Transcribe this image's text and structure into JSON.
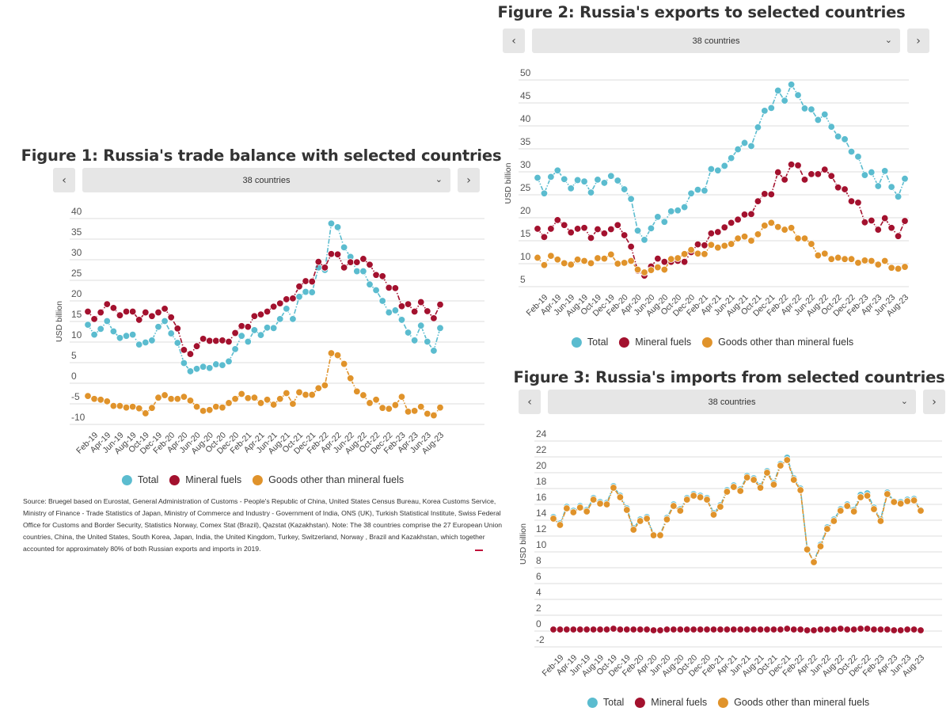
{
  "colors": {
    "total": "#5bbccf",
    "mineral_fuels": "#a3112e",
    "goods_other": "#e0932b",
    "grid": "#e3e3e3",
    "control_bg": "#e6e6e6"
  },
  "legend": {
    "total": "Total",
    "mineral_fuels": "Mineral fuels",
    "goods_other": "Goods other than mineral fuels"
  },
  "controls": {
    "prev_icon": "chevron-left-icon",
    "next_icon": "chevron-right-icon",
    "prev_glyph": "‹",
    "next_glyph": "›",
    "dropdown_glyph": "⌄",
    "selected": "38 countries"
  },
  "source": "Source: Bruegel based on Eurostat, General Administration of Customs - People's Republic of China, United States Census Bureau, Korea Customs Service, Ministry of Finance - Trade Statistics of Japan, Ministry of Commerce and Industry - Government of India, ONS (UK), Turkish Statistical Institute, Swiss Federal Office for Customs and Border Security, Statistics Norway, Comex Stat (Brazil), Qazstat (Kazakhstan). Note: The 38 countries comprise the 27 European Union countries, China, the United States, South Korea, Japan, India, the United Kingdom, Turkey, Switzerland, Norway , Brazil and Kazakhstan, which together accounted for approximately 80% of both Russian exports and imports in 2019.",
  "chart_data": [
    {
      "type": "line",
      "title": "Figure 1: Russia's trade balance with selected countries",
      "ylabel": "USD billion",
      "ylim": [
        -10,
        40
      ],
      "yticks": [
        "40",
        "35",
        "30",
        "25",
        "20",
        "15",
        "10",
        "5",
        "0",
        "-5",
        "-10"
      ],
      "grid": true,
      "legend_position": "bottom",
      "x_tick_labels": [
        "Feb-19",
        "Apr-19",
        "Jun-19",
        "Aug-19",
        "Oct-19",
        "Dec-19",
        "Feb-20",
        "Apr-20",
        "Jun-20",
        "Aug-20",
        "Oct-20",
        "Dec-20",
        "Feb-21",
        "Apr-21",
        "Jun-21",
        "Aug-21",
        "Oct-21",
        "Dec-21",
        "Feb-22",
        "Apr-22",
        "Jun-22",
        "Aug-22",
        "Oct-22",
        "Dec-22",
        "Feb-23",
        "Apr-23",
        "Jun-23",
        "Aug-23"
      ],
      "x": [
        "Jan-19",
        "Feb-19",
        "Mar-19",
        "Apr-19",
        "May-19",
        "Jun-19",
        "Jul-19",
        "Aug-19",
        "Sep-19",
        "Oct-19",
        "Nov-19",
        "Dec-19",
        "Jan-20",
        "Feb-20",
        "Mar-20",
        "Apr-20",
        "May-20",
        "Jun-20",
        "Jul-20",
        "Aug-20",
        "Sep-20",
        "Oct-20",
        "Nov-20",
        "Dec-20",
        "Jan-21",
        "Feb-21",
        "Mar-21",
        "Apr-21",
        "May-21",
        "Jun-21",
        "Jul-21",
        "Aug-21",
        "Sep-21",
        "Oct-21",
        "Nov-21",
        "Dec-21",
        "Jan-22",
        "Feb-22",
        "Mar-22",
        "Apr-22",
        "May-22",
        "Jun-22",
        "Jul-22",
        "Aug-22",
        "Sep-22",
        "Oct-22",
        "Nov-22",
        "Dec-22",
        "Jan-23",
        "Feb-23",
        "Mar-23",
        "Apr-23",
        "May-23",
        "Jun-23",
        "Jul-23",
        "Aug-23"
      ],
      "series": [
        {
          "name": "Total",
          "key": "total",
          "values": [
            14.2,
            11.8,
            13.2,
            15.1,
            12.6,
            11.0,
            11.5,
            11.8,
            9.4,
            9.9,
            10.4,
            13.7,
            15.1,
            12.1,
            9.8,
            4.9,
            2.9,
            3.5,
            4.0,
            3.7,
            4.6,
            4.4,
            5.3,
            8.3,
            11.5,
            10.1,
            12.9,
            11.7,
            13.5,
            13.4,
            15.6,
            18.1,
            15.6,
            21.0,
            22.2,
            22.1,
            28.1,
            27.5,
            38.8,
            37.9,
            33.0,
            30.7,
            27.2,
            27.2,
            24.0,
            22.6,
            20.0,
            17.2,
            17.7,
            15.4,
            12.3,
            10.4,
            14.0,
            10.1,
            7.9,
            13.4
          ]
        },
        {
          "name": "Mineral fuels",
          "key": "mineral_fuels",
          "values": [
            17.4,
            15.6,
            17.2,
            19.2,
            18.3,
            16.5,
            17.4,
            17.4,
            15.4,
            17.2,
            16.3,
            17.2,
            18.1,
            16.0,
            13.3,
            8.1,
            7.1,
            9.0,
            10.8,
            10.3,
            10.3,
            10.4,
            10.1,
            12.2,
            13.9,
            13.7,
            16.3,
            16.7,
            17.4,
            18.6,
            19.4,
            20.4,
            20.6,
            23.5,
            24.8,
            24.7,
            29.5,
            28.1,
            31.4,
            31.3,
            28.1,
            29.4,
            29.4,
            30.2,
            28.8,
            26.3,
            26.0,
            23.2,
            23.1,
            18.7,
            19.2,
            17.4,
            19.7,
            17.5,
            15.8,
            19.1
          ]
        },
        {
          "name": "Goods other than mineral fuels",
          "key": "goods_other",
          "values": [
            -3.1,
            -3.8,
            -4.0,
            -4.4,
            -5.5,
            -5.5,
            -5.9,
            -5.7,
            -6.1,
            -7.3,
            -6.0,
            -3.5,
            -2.9,
            -3.8,
            -3.8,
            -3.3,
            -4.2,
            -5.7,
            -6.7,
            -6.5,
            -5.7,
            -5.9,
            -4.8,
            -3.8,
            -2.6,
            -3.6,
            -3.5,
            -4.8,
            -4.0,
            -5.2,
            -3.8,
            -2.4,
            -5.0,
            -2.2,
            -2.8,
            -2.8,
            -1.2,
            -0.5,
            7.3,
            6.8,
            4.7,
            1.2,
            -2.0,
            -2.9,
            -4.8,
            -4.0,
            -6.0,
            -6.2,
            -5.3,
            -3.3,
            -6.9,
            -6.7,
            -5.7,
            -7.4,
            -7.8,
            -5.9
          ]
        }
      ]
    },
    {
      "type": "line",
      "title": "Figure 2: Russia's exports to selected countries",
      "ylabel": "USD billion",
      "ylim": [
        5,
        50
      ],
      "yticks": [
        "50",
        "45",
        "40",
        "35",
        "30",
        "25",
        "20",
        "15",
        "10",
        "5"
      ],
      "grid": true,
      "legend_position": "bottom",
      "x_tick_labels": [
        "Feb-19",
        "Apr-19",
        "Jun-19",
        "Aug-19",
        "Oct-19",
        "Dec-19",
        "Feb-20",
        "Apr-20",
        "Jun-20",
        "Aug-20",
        "Oct-20",
        "Dec-20",
        "Feb-21",
        "Apr-21",
        "Jun-21",
        "Aug-21",
        "Oct-21",
        "Dec-21",
        "Feb-22",
        "Apr-22",
        "Jun-22",
        "Aug-22",
        "Oct-22",
        "Dec-22",
        "Feb-23",
        "Apr-23",
        "Jun-23",
        "Aug-23"
      ],
      "x": [
        "Jan-19",
        "Feb-19",
        "Mar-19",
        "Apr-19",
        "May-19",
        "Jun-19",
        "Jul-19",
        "Aug-19",
        "Sep-19",
        "Oct-19",
        "Nov-19",
        "Dec-19",
        "Jan-20",
        "Feb-20",
        "Mar-20",
        "Apr-20",
        "May-20",
        "Jun-20",
        "Jul-20",
        "Aug-20",
        "Sep-20",
        "Oct-20",
        "Nov-20",
        "Dec-20",
        "Jan-21",
        "Feb-21",
        "Mar-21",
        "Apr-21",
        "May-21",
        "Jun-21",
        "Jul-21",
        "Aug-21",
        "Sep-21",
        "Oct-21",
        "Nov-21",
        "Dec-21",
        "Jan-22",
        "Feb-22",
        "Mar-22",
        "Apr-22",
        "May-22",
        "Jun-22",
        "Jul-22",
        "Aug-22",
        "Sep-22",
        "Oct-22",
        "Nov-22",
        "Dec-22",
        "Jan-23",
        "Feb-23",
        "Mar-23",
        "Apr-23",
        "May-23",
        "Jun-23",
        "Jul-23",
        "Aug-23"
      ],
      "series": [
        {
          "name": "Total",
          "key": "total",
          "values": [
            28.7,
            25.3,
            28.9,
            30.3,
            28.4,
            26.4,
            28.2,
            27.9,
            25.5,
            28.3,
            27.6,
            29.1,
            28.1,
            26.2,
            24.1,
            17.2,
            15.2,
            17.7,
            20.2,
            19.1,
            21.4,
            21.6,
            22.3,
            25.3,
            26.1,
            25.9,
            30.6,
            30.3,
            31.3,
            33.0,
            34.9,
            36.3,
            35.6,
            39.7,
            43.3,
            43.9,
            47.7,
            45.5,
            49.0,
            46.7,
            43.8,
            43.6,
            41.3,
            42.5,
            39.8,
            37.7,
            37.1,
            34.4,
            33.3,
            29.3,
            29.9,
            26.9,
            30.2,
            26.7,
            24.6,
            28.5
          ]
        },
        {
          "name": "Mineral fuels",
          "key": "mineral_fuels",
          "values": [
            17.6,
            15.8,
            17.6,
            19.5,
            18.4,
            16.8,
            17.6,
            17.8,
            15.6,
            17.5,
            16.6,
            17.5,
            18.4,
            16.2,
            13.7,
            8.5,
            7.4,
            9.4,
            11.1,
            10.4,
            10.4,
            10.6,
            10.4,
            12.5,
            14.2,
            14.0,
            16.6,
            16.9,
            17.9,
            18.9,
            19.6,
            20.7,
            20.8,
            23.6,
            25.2,
            25.1,
            29.9,
            28.3,
            31.6,
            31.4,
            28.3,
            29.5,
            29.5,
            30.5,
            29.1,
            26.6,
            26.2,
            23.6,
            23.3,
            19.0,
            19.4,
            17.4,
            19.9,
            17.8,
            16.0,
            19.3
          ]
        },
        {
          "name": "Goods other than mineral fuels",
          "key": "goods_other",
          "values": [
            11.3,
            9.7,
            11.7,
            10.9,
            10.1,
            9.8,
            10.9,
            10.6,
            10.1,
            11.2,
            11.1,
            12.0,
            10.0,
            10.2,
            10.6,
            8.7,
            8.1,
            8.6,
            9.2,
            8.7,
            11.0,
            11.2,
            12.1,
            13.0,
            12.2,
            12.1,
            14.1,
            13.5,
            13.9,
            14.3,
            15.5,
            15.9,
            15.0,
            16.4,
            18.3,
            18.9,
            18.0,
            17.4,
            17.8,
            15.5,
            15.5,
            14.3,
            11.8,
            12.2,
            11.0,
            11.3,
            11.0,
            11.0,
            10.2,
            10.7,
            10.6,
            9.8,
            10.6,
            9.1,
            8.9,
            9.3
          ]
        }
      ]
    },
    {
      "type": "line",
      "title": "Figure 3: Russia's imports from selected countries",
      "ylabel": "USD billion",
      "ylim": [
        -2,
        24
      ],
      "yticks": [
        "24",
        "22",
        "20",
        "18",
        "16",
        "14",
        "12",
        "10",
        "8",
        "6",
        "4",
        "2",
        "0",
        "-2"
      ],
      "grid": true,
      "legend_position": "bottom",
      "x_tick_labels": [
        "Feb-19",
        "Apr-19",
        "Jun-19",
        "Aug-19",
        "Oct-19",
        "Dec-19",
        "Feb-20",
        "Apr-20",
        "Jun-20",
        "Aug-20",
        "Oct-20",
        "Dec-20",
        "Feb-21",
        "Apr-21",
        "Jun-21",
        "Aug-21",
        "Oct-21",
        "Dec-21",
        "Feb-22",
        "Apr-22",
        "Jun-22",
        "Aug-22",
        "Oct-22",
        "Dec-22",
        "Feb-23",
        "Apr-23",
        "Jun-23",
        "Aug-23"
      ],
      "x": [
        "Jan-19",
        "Feb-19",
        "Mar-19",
        "Apr-19",
        "May-19",
        "Jun-19",
        "Jul-19",
        "Aug-19",
        "Sep-19",
        "Oct-19",
        "Nov-19",
        "Dec-19",
        "Jan-20",
        "Feb-20",
        "Mar-20",
        "Apr-20",
        "May-20",
        "Jun-20",
        "Jul-20",
        "Aug-20",
        "Sep-20",
        "Oct-20",
        "Nov-20",
        "Dec-20",
        "Jan-21",
        "Feb-21",
        "Mar-21",
        "Apr-21",
        "May-21",
        "Jun-21",
        "Jul-21",
        "Aug-21",
        "Sep-21",
        "Oct-21",
        "Nov-21",
        "Dec-21",
        "Jan-22",
        "Feb-22",
        "Mar-22",
        "Apr-22",
        "May-22",
        "Jun-22",
        "Jul-22",
        "Aug-22",
        "Sep-22",
        "Oct-22",
        "Nov-22",
        "Dec-22",
        "Jan-23",
        "Feb-23",
        "Mar-23",
        "Apr-23",
        "May-23",
        "Jun-23",
        "Jul-23",
        "Aug-23"
      ],
      "series": [
        {
          "name": "Total",
          "key": "total",
          "values": [
            14.4,
            13.6,
            15.7,
            15.2,
            15.8,
            15.3,
            16.8,
            16.3,
            16.2,
            18.3,
            17.1,
            15.5,
            13.0,
            14.1,
            14.4,
            12.2,
            12.2,
            14.3,
            16.0,
            15.4,
            16.8,
            17.3,
            17.1,
            16.8,
            14.9,
            15.9,
            17.8,
            18.4,
            17.9,
            19.6,
            19.3,
            18.3,
            20.2,
            18.7,
            21.1,
            21.9,
            19.3,
            18.0,
            10.4,
            8.8,
            10.9,
            13.1,
            14.1,
            15.4,
            16.0,
            15.3,
            17.2,
            17.4,
            15.6,
            14.1,
            17.5,
            16.4,
            16.3,
            16.6,
            16.7,
            15.3
          ]
        },
        {
          "name": "Mineral fuels",
          "key": "mineral_fuels",
          "values": [
            0.2,
            0.2,
            0.2,
            0.2,
            0.2,
            0.2,
            0.2,
            0.2,
            0.2,
            0.3,
            0.2,
            0.2,
            0.2,
            0.2,
            0.2,
            0.1,
            0.1,
            0.2,
            0.2,
            0.2,
            0.2,
            0.2,
            0.2,
            0.2,
            0.2,
            0.2,
            0.2,
            0.2,
            0.2,
            0.2,
            0.2,
            0.2,
            0.2,
            0.2,
            0.2,
            0.3,
            0.2,
            0.2,
            0.1,
            0.1,
            0.2,
            0.2,
            0.2,
            0.3,
            0.2,
            0.2,
            0.3,
            0.3,
            0.2,
            0.2,
            0.2,
            0.1,
            0.1,
            0.2,
            0.2,
            0.1
          ]
        },
        {
          "name": "Goods other than mineral fuels",
          "key": "goods_other",
          "values": [
            14.2,
            13.4,
            15.5,
            15.0,
            15.6,
            15.1,
            16.6,
            16.1,
            16.0,
            18.1,
            16.9,
            15.3,
            12.8,
            13.9,
            14.2,
            12.1,
            12.1,
            14.1,
            15.8,
            15.2,
            16.6,
            17.1,
            16.9,
            16.6,
            14.7,
            15.7,
            17.6,
            18.2,
            17.7,
            19.4,
            19.1,
            18.1,
            20.0,
            18.5,
            20.9,
            21.6,
            19.1,
            17.8,
            10.3,
            8.7,
            10.7,
            12.9,
            13.9,
            15.2,
            15.8,
            15.1,
            16.9,
            17.1,
            15.4,
            13.9,
            17.3,
            16.3,
            16.1,
            16.4,
            16.5,
            15.2
          ]
        }
      ]
    }
  ]
}
